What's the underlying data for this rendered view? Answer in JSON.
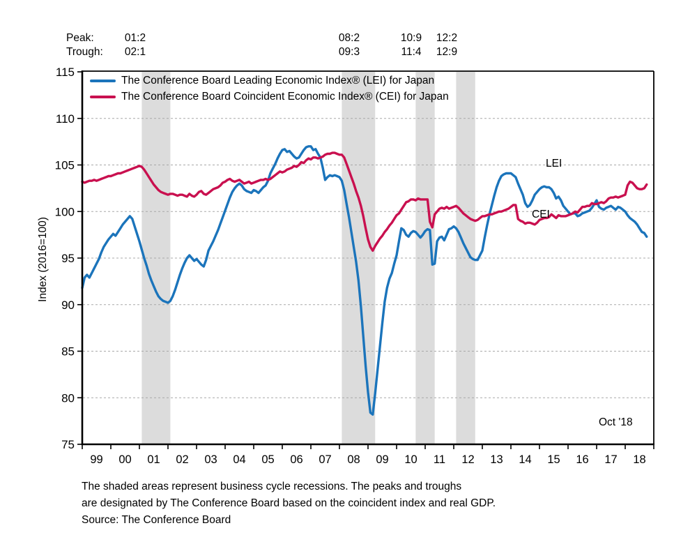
{
  "annotations": {
    "peak_label": "Peak:",
    "trough_label": "Trough:",
    "cycles": [
      {
        "peak": "01:2",
        "trough": "02:1"
      },
      {
        "peak": "08:2",
        "trough": "09:3"
      },
      {
        "peak": "10:9",
        "trough": "11:4"
      },
      {
        "peak": "12:2",
        "trough": "12:9"
      }
    ],
    "lei_line_label": "LEI",
    "cei_line_label": "CEI",
    "last_point_label": "Oct '18"
  },
  "legend": [
    {
      "label": "The Conference Board Leading Economic Index® (LEI) for Japan",
      "color": "#1b74bb"
    },
    {
      "label": "The Conference Board Coincident Economic Index® (CEI) for Japan",
      "color": "#c9104f"
    }
  ],
  "footnote": [
    "The shaded areas represent business cycle recessions. The peaks and troughs",
    "are designated by The Conference Board based on the coincident index and real GDP.",
    "Source: The Conference Board"
  ],
  "colors": {
    "lei": "#1b74bb",
    "cei": "#c9104f",
    "recession_shading": "#dcdcdc",
    "gridline": "#a8a8a8",
    "axis": "#000000",
    "background": "#ffffff"
  },
  "chart_data": {
    "type": "line",
    "title": "",
    "xlabel": "",
    "ylabel": "Index (2016=100)",
    "ylim": [
      75,
      115
    ],
    "ytick_step": 5,
    "grid": "horizontal-dashed",
    "legend_position": "top-left-inside",
    "x_start": "1999-01",
    "x_end": "2018-10",
    "xtick_labels": [
      "99",
      "00",
      "01",
      "02",
      "03",
      "04",
      "05",
      "06",
      "07",
      "08",
      "09",
      "10",
      "11",
      "12",
      "13",
      "14",
      "15",
      "16",
      "17",
      "18"
    ],
    "recessions": [
      {
        "start": "2001-02",
        "end": "2002-01"
      },
      {
        "start": "2008-02",
        "end": "2009-03"
      },
      {
        "start": "2010-09",
        "end": "2011-04"
      },
      {
        "start": "2012-02",
        "end": "2012-09"
      }
    ],
    "series": [
      {
        "name": "LEI",
        "color": "#1b74bb",
        "start": "1999-01",
        "values": [
          91.8,
          92.9,
          93.2,
          92.9,
          93.4,
          93.9,
          94.4,
          94.9,
          95.6,
          96.2,
          96.6,
          97.0,
          97.3,
          97.6,
          97.4,
          97.8,
          98.2,
          98.6,
          98.9,
          99.2,
          99.5,
          99.2,
          98.4,
          97.6,
          96.8,
          95.9,
          95.0,
          94.2,
          93.3,
          92.6,
          92.0,
          91.4,
          90.9,
          90.6,
          90.4,
          90.3,
          90.2,
          90.4,
          90.9,
          91.6,
          92.4,
          93.2,
          93.9,
          94.5,
          95.0,
          95.3,
          95.0,
          94.7,
          94.9,
          94.6,
          94.3,
          94.1,
          94.8,
          95.8,
          96.3,
          96.8,
          97.4,
          98.0,
          98.7,
          99.4,
          100.1,
          100.8,
          101.5,
          102.1,
          102.5,
          102.8,
          103.0,
          102.8,
          102.4,
          102.2,
          102.1,
          102.0,
          102.3,
          102.2,
          102.0,
          102.3,
          102.6,
          102.8,
          103.3,
          104.1,
          104.6,
          105.1,
          105.7,
          106.2,
          106.6,
          106.7,
          106.4,
          106.5,
          106.2,
          105.9,
          105.7,
          105.8,
          106.2,
          106.6,
          106.9,
          107.0,
          107.0,
          106.6,
          106.7,
          106.2,
          105.8,
          104.7,
          103.4,
          103.7,
          103.9,
          103.8,
          103.9,
          103.8,
          103.7,
          103.3,
          102.3,
          100.8,
          99.4,
          97.8,
          96.2,
          94.6,
          92.6,
          89.8,
          86.6,
          83.4,
          80.6,
          78.4,
          78.2,
          80.5,
          83.0,
          85.5,
          88.0,
          90.3,
          91.8,
          92.8,
          93.4,
          94.4,
          95.3,
          96.8,
          98.2,
          98.0,
          97.5,
          97.3,
          97.7,
          97.9,
          97.8,
          97.5,
          97.2,
          97.5,
          97.9,
          98.1,
          98.0,
          94.3,
          94.4,
          96.8,
          97.2,
          97.3,
          96.9,
          97.5,
          98.1,
          98.2,
          98.4,
          98.2,
          97.8,
          97.2,
          96.6,
          96.1,
          95.6,
          95.1,
          94.9,
          94.8,
          94.8,
          95.3,
          95.8,
          97.2,
          98.5,
          99.7,
          100.7,
          101.7,
          102.6,
          103.3,
          103.8,
          104.0,
          104.1,
          104.1,
          104.1,
          103.9,
          103.7,
          103.0,
          102.4,
          101.8,
          100.9,
          100.5,
          100.7,
          101.2,
          101.8,
          102.1,
          102.4,
          102.6,
          102.7,
          102.6,
          102.6,
          102.4,
          102.0,
          101.4,
          101.6,
          101.2,
          100.6,
          100.3,
          100.0,
          99.7,
          99.8,
          99.8,
          99.5,
          99.6,
          99.8,
          99.9,
          100.0,
          100.1,
          100.4,
          100.8,
          101.2,
          100.5,
          100.3,
          100.2,
          100.4,
          100.5,
          100.6,
          100.4,
          100.2,
          100.5,
          100.4,
          100.2,
          100.0,
          99.6,
          99.3,
          99.1,
          98.9,
          98.6,
          98.2,
          97.8,
          97.7,
          97.3
        ]
      },
      {
        "name": "CEI",
        "color": "#c9104f",
        "start": "1999-01",
        "values": [
          103.2,
          103.1,
          103.2,
          103.3,
          103.3,
          103.4,
          103.3,
          103.4,
          103.5,
          103.6,
          103.7,
          103.8,
          103.8,
          103.9,
          104.0,
          104.1,
          104.1,
          104.2,
          104.3,
          104.4,
          104.5,
          104.6,
          104.7,
          104.8,
          104.9,
          104.8,
          104.5,
          104.1,
          103.7,
          103.3,
          102.9,
          102.6,
          102.3,
          102.1,
          102.0,
          101.9,
          101.8,
          101.9,
          101.9,
          101.8,
          101.7,
          101.8,
          101.8,
          101.7,
          101.6,
          101.9,
          101.7,
          101.6,
          101.8,
          102.1,
          102.2,
          101.9,
          101.8,
          102.0,
          102.2,
          102.4,
          102.5,
          102.6,
          102.8,
          103.1,
          103.2,
          103.4,
          103.5,
          103.3,
          103.2,
          103.3,
          103.4,
          103.2,
          103.0,
          103.1,
          103.2,
          103.0,
          103.1,
          103.2,
          103.3,
          103.4,
          103.4,
          103.5,
          103.4,
          103.5,
          103.7,
          103.9,
          104.1,
          104.3,
          104.2,
          104.3,
          104.5,
          104.6,
          104.7,
          104.9,
          104.8,
          105.0,
          105.3,
          105.2,
          105.5,
          105.7,
          105.6,
          105.8,
          105.8,
          105.7,
          105.8,
          105.9,
          106.1,
          106.2,
          106.2,
          106.3,
          106.3,
          106.2,
          106.1,
          106.1,
          105.8,
          105.1,
          104.4,
          103.7,
          103.0,
          102.2,
          101.5,
          100.6,
          99.5,
          98.2,
          97.0,
          96.2,
          95.8,
          96.3,
          96.7,
          97.1,
          97.4,
          97.8,
          98.1,
          98.5,
          98.8,
          99.2,
          99.6,
          99.8,
          100.2,
          100.6,
          101.0,
          101.1,
          101.3,
          101.3,
          101.2,
          101.4,
          101.3,
          101.3,
          101.3,
          101.3,
          98.9,
          98.3,
          99.7,
          100.0,
          100.3,
          100.4,
          100.3,
          100.5,
          100.3,
          100.4,
          100.5,
          100.6,
          100.4,
          100.1,
          99.8,
          99.6,
          99.4,
          99.2,
          99.1,
          99.0,
          99.1,
          99.3,
          99.5,
          99.5,
          99.6,
          99.7,
          99.7,
          99.8,
          99.9,
          100.0,
          100.0,
          100.1,
          100.2,
          100.3,
          100.5,
          100.7,
          100.7,
          99.2,
          99.0,
          98.9,
          98.7,
          98.8,
          98.8,
          98.7,
          98.6,
          98.8,
          99.1,
          99.2,
          99.3,
          99.3,
          99.4,
          99.7,
          99.5,
          99.3,
          99.6,
          99.5,
          99.5,
          99.5,
          99.6,
          99.7,
          99.8,
          100.0,
          99.9,
          100.2,
          100.5,
          100.5,
          100.6,
          100.6,
          100.9,
          100.8,
          100.8,
          100.9,
          101.0,
          100.9,
          101.1,
          101.4,
          101.5,
          101.5,
          101.6,
          101.5,
          101.6,
          101.7,
          101.8,
          102.8,
          103.2,
          103.1,
          102.8,
          102.5,
          102.4,
          102.4,
          102.5,
          102.9
        ]
      }
    ]
  }
}
